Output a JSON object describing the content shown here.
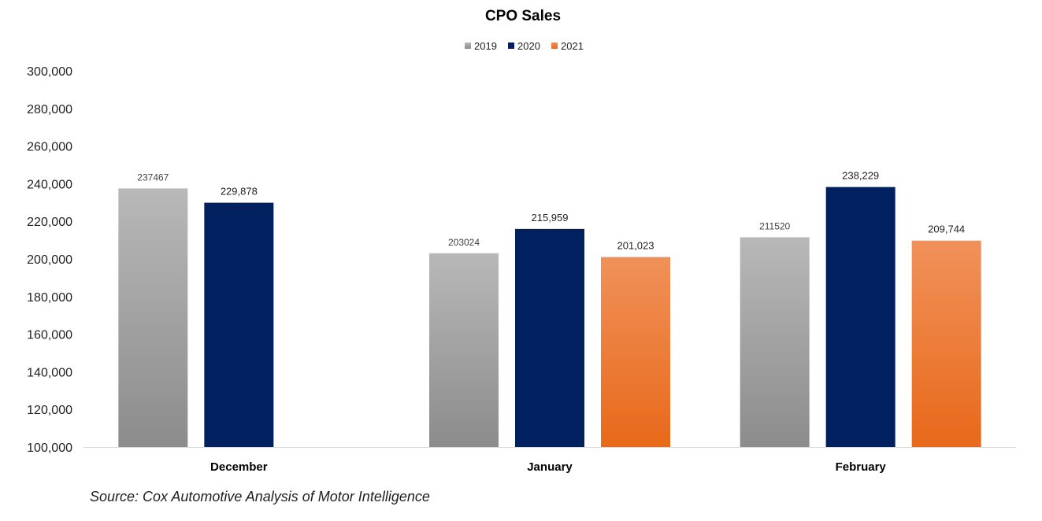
{
  "chart_data": {
    "type": "bar",
    "title": "CPO Sales",
    "categories": [
      "December",
      "January",
      "February"
    ],
    "series": [
      {
        "name": "2019",
        "values": [
          237467,
          203024,
          211520
        ],
        "labels": [
          "237467",
          "203024",
          "211520"
        ],
        "color": "#a6a6a6"
      },
      {
        "name": "2020",
        "values": [
          229878,
          215959,
          238229
        ],
        "labels": [
          "229,878",
          "215,959",
          "238,229"
        ],
        "color": "#002060"
      },
      {
        "name": "2021",
        "values": [
          null,
          201023,
          209744
        ],
        "labels": [
          null,
          "201,023",
          "209,744"
        ],
        "color": "#ed7d31"
      }
    ],
    "y_ticks": [
      "100,000",
      "120,000",
      "140,000",
      "160,000",
      "180,000",
      "200,000",
      "220,000",
      "240,000",
      "260,000",
      "280,000",
      "300,000"
    ],
    "ylim": [
      100000,
      300000
    ],
    "xlabel": "",
    "ylabel": "",
    "grid": false,
    "legend_position": "top-center"
  },
  "source_note": "Source: Cox Automotive Analysis of Motor Intelligence"
}
